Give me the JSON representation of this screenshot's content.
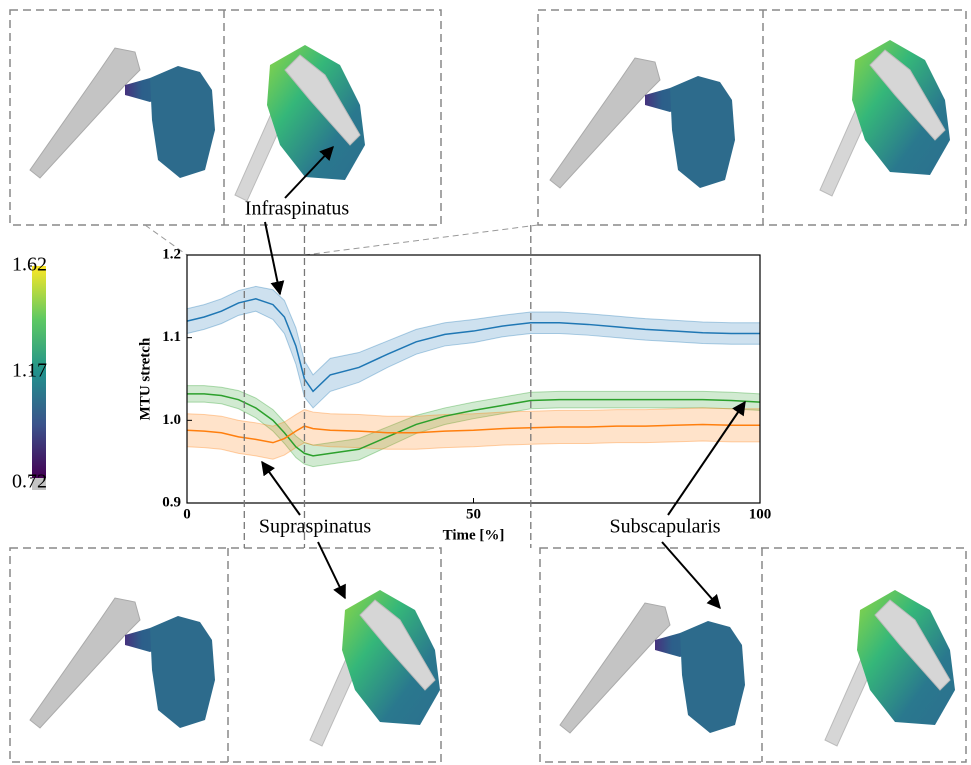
{
  "chart_data": {
    "type": "line",
    "xlabel": "Time [%]",
    "ylabel": "MTU stretch",
    "x": [
      0,
      3,
      6,
      9,
      12,
      15,
      17,
      19,
      20.5,
      22,
      25,
      30,
      35,
      40,
      45,
      50,
      55,
      60,
      65,
      70,
      75,
      80,
      85,
      90,
      95,
      100
    ],
    "series": [
      {
        "name": "Infraspinatus",
        "color": "#1f77b4",
        "values": [
          1.12,
          1.125,
          1.132,
          1.142,
          1.147,
          1.14,
          1.125,
          1.09,
          1.05,
          1.035,
          1.055,
          1.064,
          1.08,
          1.095,
          1.104,
          1.108,
          1.114,
          1.118,
          1.118,
          1.116,
          1.113,
          1.11,
          1.108,
          1.106,
          1.105,
          1.105
        ],
        "spread": [
          0.015,
          0.015,
          0.015,
          0.015,
          0.015,
          0.018,
          0.02,
          0.022,
          0.022,
          0.02,
          0.02,
          0.018,
          0.016,
          0.015,
          0.014,
          0.014,
          0.013,
          0.013,
          0.013,
          0.013,
          0.013,
          0.013,
          0.013,
          0.013,
          0.013,
          0.013
        ]
      },
      {
        "name": "Supraspinatus",
        "color": "#2ca02c",
        "values": [
          1.032,
          1.032,
          1.03,
          1.025,
          1.015,
          1.0,
          0.985,
          0.968,
          0.96,
          0.957,
          0.96,
          0.965,
          0.98,
          0.995,
          1.005,
          1.012,
          1.018,
          1.024,
          1.025,
          1.025,
          1.025,
          1.025,
          1.025,
          1.025,
          1.024,
          1.022
        ],
        "spread": [
          0.01,
          0.01,
          0.01,
          0.011,
          0.012,
          0.013,
          0.013,
          0.013,
          0.013,
          0.013,
          0.013,
          0.013,
          0.012,
          0.011,
          0.01,
          0.01,
          0.01,
          0.01,
          0.01,
          0.01,
          0.01,
          0.01,
          0.01,
          0.01,
          0.01,
          0.01
        ]
      },
      {
        "name": "Subscapularis",
        "color": "#ff7f0e",
        "values": [
          0.988,
          0.987,
          0.985,
          0.98,
          0.977,
          0.973,
          0.978,
          0.987,
          0.993,
          0.99,
          0.988,
          0.987,
          0.985,
          0.985,
          0.987,
          0.988,
          0.99,
          0.991,
          0.992,
          0.992,
          0.993,
          0.993,
          0.994,
          0.995,
          0.994,
          0.994
        ],
        "spread": [
          0.02,
          0.02,
          0.02,
          0.02,
          0.02,
          0.02,
          0.02,
          0.02,
          0.02,
          0.02,
          0.02,
          0.02,
          0.02,
          0.02,
          0.02,
          0.02,
          0.02,
          0.02,
          0.02,
          0.02,
          0.02,
          0.02,
          0.02,
          0.02,
          0.02,
          0.02
        ]
      }
    ],
    "xlim": [
      0,
      100
    ],
    "xticks": [
      0,
      50,
      100
    ],
    "ylim": [
      0.9,
      1.2
    ],
    "yticks": [
      0.9,
      {
        "value": 1,
        "label": "1.0"
      },
      1.1,
      1.2
    ],
    "vlines": [
      10,
      20.5,
      60
    ],
    "colorbar": {
      "clim": [
        0.72,
        1.62
      ],
      "ticks": [
        0.72,
        1.17,
        1.62
      ]
    }
  }
}
